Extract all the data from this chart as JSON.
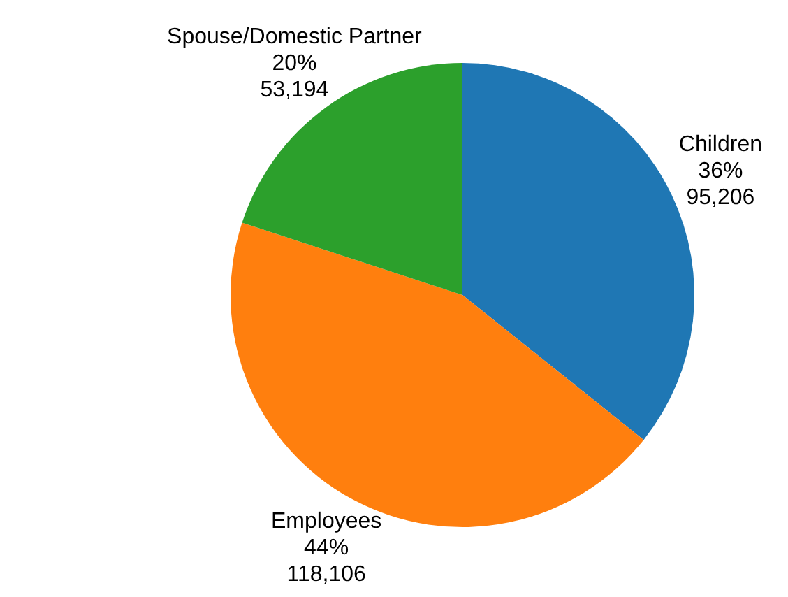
{
  "chart_data": {
    "type": "pie",
    "categories": [
      "Children",
      "Employees",
      "Spouse/Domestic Partner"
    ],
    "values": [
      95206,
      118106,
      53194
    ],
    "colors": [
      "#1f77b4",
      "#ff7f0e",
      "#2ca02c"
    ],
    "value_labels": [
      "36%\n95,206",
      "44%\n118,106",
      "20%\n53,194"
    ]
  }
}
